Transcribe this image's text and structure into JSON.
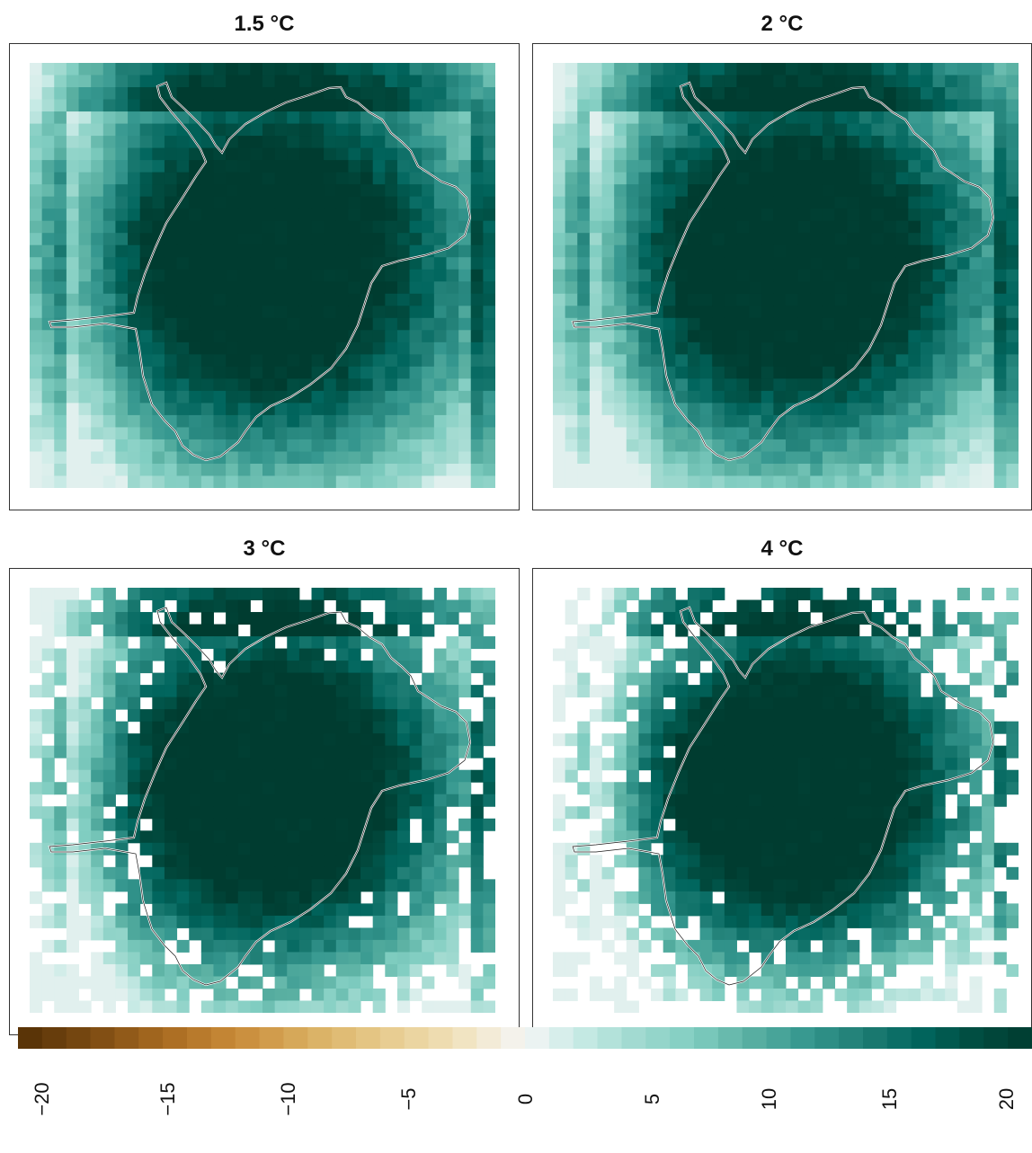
{
  "panels": [
    {
      "title": "1.5 °C",
      "warming": 1.5
    },
    {
      "title": "2 °C",
      "warming": 2
    },
    {
      "title": "3 °C",
      "warming": 3
    },
    {
      "title": "4 °C",
      "warming": 4
    }
  ],
  "colorbar": {
    "ticks": [
      "−20",
      "−15",
      "−10",
      "−5",
      "0",
      "5",
      "10",
      "15",
      "20"
    ],
    "min": -21,
    "max": 21,
    "n_bins": 42,
    "palette_negative": [
      "#f5f5f5",
      "#f0e0b8",
      "#e6c98a",
      "#d9ae60",
      "#c88a38",
      "#a86a20",
      "#7a4a12",
      "#543005"
    ],
    "palette_positive": [
      "#f5f5f5",
      "#c7eae5",
      "#9fd9cf",
      "#80cdc1",
      "#5ab0a2",
      "#35978f",
      "#1f7d74",
      "#01665e",
      "#014c40",
      "#003c30"
    ]
  }
}
